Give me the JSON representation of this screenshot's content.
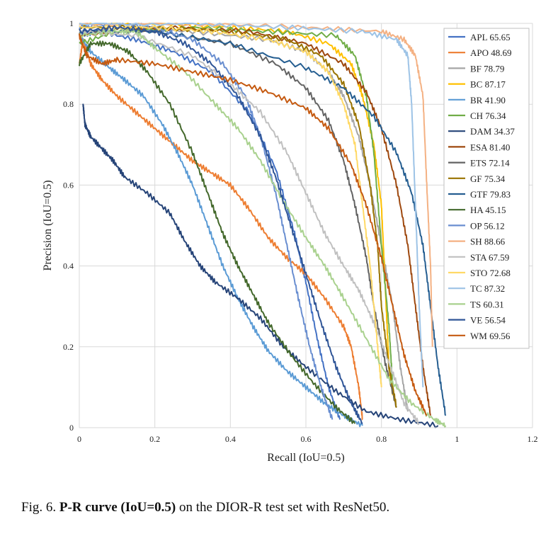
{
  "chart_data": {
    "type": "line",
    "title": "",
    "xlabel": "Recall (IoU=0.5)",
    "ylabel": "Precision (IoU=0.5)",
    "xlim": [
      0,
      1.2
    ],
    "ylim": [
      0,
      1
    ],
    "x_ticks": [
      0,
      0.2,
      0.4,
      0.6,
      0.8,
      1,
      1.2
    ],
    "x_tick_labels": [
      "0",
      "0.2",
      "0.4",
      "0.6",
      "0.8",
      "1",
      "1.2"
    ],
    "y_ticks": [
      0,
      0.2,
      0.4,
      0.6,
      0.8,
      1
    ],
    "y_tick_labels": [
      "0",
      "0.2",
      "0.4",
      "0.6",
      "0.8",
      "1"
    ],
    "grid": true,
    "legend_position": "top-right",
    "series": [
      {
        "name": "APL 65.65",
        "color": "#4472C4",
        "points": [
          [
            0,
            0.97
          ],
          [
            0.05,
            0.98
          ],
          [
            0.15,
            0.96
          ],
          [
            0.25,
            0.93
          ],
          [
            0.35,
            0.88
          ],
          [
            0.45,
            0.78
          ],
          [
            0.52,
            0.64
          ],
          [
            0.57,
            0.48
          ],
          [
            0.6,
            0.36
          ],
          [
            0.63,
            0.22
          ],
          [
            0.66,
            0.1
          ],
          [
            0.69,
            0.02
          ]
        ]
      },
      {
        "name": "APO 48.69",
        "color": "#ED7D31",
        "points": [
          [
            0,
            0.9
          ],
          [
            0.01,
            0.96
          ],
          [
            0.03,
            0.9
          ],
          [
            0.06,
            0.86
          ],
          [
            0.1,
            0.82
          ],
          [
            0.15,
            0.78
          ],
          [
            0.2,
            0.74
          ],
          [
            0.25,
            0.7
          ],
          [
            0.3,
            0.66
          ],
          [
            0.35,
            0.63
          ],
          [
            0.4,
            0.6
          ],
          [
            0.45,
            0.54
          ],
          [
            0.5,
            0.47
          ],
          [
            0.55,
            0.42
          ],
          [
            0.6,
            0.38
          ],
          [
            0.65,
            0.32
          ],
          [
            0.7,
            0.25
          ],
          [
            0.72,
            0.2
          ],
          [
            0.74,
            0.1
          ],
          [
            0.75,
            0.02
          ]
        ]
      },
      {
        "name": "BF 78.79",
        "color": "#A5A5A5",
        "points": [
          [
            0,
            0.97
          ],
          [
            0.1,
            0.99
          ],
          [
            0.3,
            0.98
          ],
          [
            0.5,
            0.96
          ],
          [
            0.6,
            0.93
          ],
          [
            0.66,
            0.88
          ],
          [
            0.7,
            0.82
          ],
          [
            0.74,
            0.72
          ],
          [
            0.77,
            0.6
          ],
          [
            0.8,
            0.45
          ],
          [
            0.83,
            0.3
          ],
          [
            0.85,
            0.15
          ],
          [
            0.87,
            0.04
          ]
        ]
      },
      {
        "name": "BC 87.17",
        "color": "#FFC000",
        "points": [
          [
            0,
            1
          ],
          [
            0.2,
            1
          ],
          [
            0.4,
            0.99
          ],
          [
            0.55,
            0.98
          ],
          [
            0.66,
            0.95
          ],
          [
            0.72,
            0.9
          ],
          [
            0.75,
            0.82
          ],
          [
            0.78,
            0.7
          ],
          [
            0.8,
            0.55
          ],
          [
            0.81,
            0.35
          ],
          [
            0.82,
            0.15
          ],
          [
            0.83,
            0.08
          ]
        ]
      },
      {
        "name": "BR 41.90",
        "color": "#5B9BD5",
        "points": [
          [
            0,
            0.97
          ],
          [
            0.03,
            0.93
          ],
          [
            0.08,
            0.89
          ],
          [
            0.12,
            0.86
          ],
          [
            0.17,
            0.82
          ],
          [
            0.22,
            0.75
          ],
          [
            0.26,
            0.68
          ],
          [
            0.3,
            0.6
          ],
          [
            0.34,
            0.5
          ],
          [
            0.38,
            0.4
          ],
          [
            0.42,
            0.32
          ],
          [
            0.46,
            0.25
          ],
          [
            0.5,
            0.19
          ],
          [
            0.55,
            0.14
          ],
          [
            0.6,
            0.1
          ],
          [
            0.65,
            0.06
          ],
          [
            0.7,
            0.03
          ],
          [
            0.75,
            0.005
          ]
        ]
      },
      {
        "name": "CH 76.34",
        "color": "#70AD47",
        "points": [
          [
            0,
            0.95
          ],
          [
            0.1,
            0.98
          ],
          [
            0.3,
            0.99
          ],
          [
            0.5,
            0.98
          ],
          [
            0.68,
            0.97
          ],
          [
            0.73,
            0.92
          ],
          [
            0.76,
            0.82
          ],
          [
            0.78,
            0.68
          ],
          [
            0.8,
            0.45
          ],
          [
            0.82,
            0.25
          ],
          [
            0.83,
            0.1
          ]
        ]
      },
      {
        "name": "DAM 34.37",
        "color": "#264478",
        "points": [
          [
            0.01,
            0.8
          ],
          [
            0.015,
            0.75
          ],
          [
            0.03,
            0.72
          ],
          [
            0.06,
            0.69
          ],
          [
            0.09,
            0.66
          ],
          [
            0.12,
            0.62
          ],
          [
            0.18,
            0.58
          ],
          [
            0.24,
            0.53
          ],
          [
            0.28,
            0.46
          ],
          [
            0.32,
            0.4
          ],
          [
            0.36,
            0.36
          ],
          [
            0.42,
            0.32
          ],
          [
            0.48,
            0.27
          ],
          [
            0.54,
            0.2
          ],
          [
            0.6,
            0.15
          ],
          [
            0.68,
            0.09
          ],
          [
            0.76,
            0.04
          ],
          [
            0.85,
            0.02
          ],
          [
            0.95,
            0.005
          ]
        ]
      },
      {
        "name": "ESA 81.40",
        "color": "#9E480E",
        "points": [
          [
            0,
            0.97
          ],
          [
            0.2,
            0.99
          ],
          [
            0.45,
            0.98
          ],
          [
            0.6,
            0.95
          ],
          [
            0.7,
            0.9
          ],
          [
            0.76,
            0.83
          ],
          [
            0.8,
            0.74
          ],
          [
            0.84,
            0.6
          ],
          [
            0.87,
            0.45
          ],
          [
            0.89,
            0.3
          ],
          [
            0.91,
            0.15
          ],
          [
            0.93,
            0.03
          ]
        ]
      },
      {
        "name": "ETS 72.14",
        "color": "#636363",
        "points": [
          [
            0,
            0.98
          ],
          [
            0.2,
            0.98
          ],
          [
            0.4,
            0.95
          ],
          [
            0.52,
            0.9
          ],
          [
            0.6,
            0.84
          ],
          [
            0.66,
            0.76
          ],
          [
            0.7,
            0.66
          ],
          [
            0.73,
            0.55
          ],
          [
            0.76,
            0.42
          ],
          [
            0.78,
            0.3
          ],
          [
            0.81,
            0.16
          ],
          [
            0.84,
            0.05
          ]
        ]
      },
      {
        "name": "GF 75.34",
        "color": "#997300",
        "points": [
          [
            0,
            0.99
          ],
          [
            0.2,
            0.99
          ],
          [
            0.4,
            0.98
          ],
          [
            0.55,
            0.96
          ],
          [
            0.64,
            0.92
          ],
          [
            0.7,
            0.85
          ],
          [
            0.74,
            0.75
          ],
          [
            0.77,
            0.6
          ],
          [
            0.79,
            0.45
          ],
          [
            0.8,
            0.3
          ],
          [
            0.82,
            0.15
          ],
          [
            0.84,
            0.05
          ]
        ]
      },
      {
        "name": "GTF 79.83",
        "color": "#255E91",
        "points": [
          [
            0,
            0.98
          ],
          [
            0.2,
            0.98
          ],
          [
            0.4,
            0.95
          ],
          [
            0.6,
            0.89
          ],
          [
            0.7,
            0.84
          ],
          [
            0.78,
            0.77
          ],
          [
            0.84,
            0.68
          ],
          [
            0.88,
            0.58
          ],
          [
            0.91,
            0.45
          ],
          [
            0.93,
            0.3
          ],
          [
            0.95,
            0.15
          ],
          [
            0.97,
            0.03
          ]
        ]
      },
      {
        "name": "HA 45.15",
        "color": "#43682B",
        "points": [
          [
            0,
            0.9
          ],
          [
            0.03,
            0.95
          ],
          [
            0.08,
            0.95
          ],
          [
            0.13,
            0.93
          ],
          [
            0.18,
            0.88
          ],
          [
            0.24,
            0.8
          ],
          [
            0.3,
            0.68
          ],
          [
            0.34,
            0.58
          ],
          [
            0.38,
            0.48
          ],
          [
            0.42,
            0.4
          ],
          [
            0.46,
            0.33
          ],
          [
            0.5,
            0.26
          ],
          [
            0.56,
            0.18
          ],
          [
            0.62,
            0.11
          ],
          [
            0.68,
            0.05
          ],
          [
            0.73,
            0.01
          ]
        ]
      },
      {
        "name": "OP 56.12",
        "color": "#698ED0",
        "points": [
          [
            0,
            0.99
          ],
          [
            0.1,
            1
          ],
          [
            0.2,
            0.99
          ],
          [
            0.3,
            0.96
          ],
          [
            0.38,
            0.9
          ],
          [
            0.44,
            0.82
          ],
          [
            0.48,
            0.72
          ],
          [
            0.52,
            0.58
          ],
          [
            0.55,
            0.45
          ],
          [
            0.58,
            0.32
          ],
          [
            0.61,
            0.2
          ],
          [
            0.64,
            0.1
          ],
          [
            0.67,
            0.02
          ]
        ]
      },
      {
        "name": "SH 88.66",
        "color": "#F4B183",
        "points": [
          [
            0,
            1
          ],
          [
            0.3,
            1
          ],
          [
            0.6,
            0.99
          ],
          [
            0.8,
            0.98
          ],
          [
            0.86,
            0.96
          ],
          [
            0.89,
            0.92
          ],
          [
            0.91,
            0.82
          ],
          [
            0.92,
            0.6
          ],
          [
            0.93,
            0.4
          ],
          [
            0.935,
            0.2
          ]
        ]
      },
      {
        "name": "STA 67.59",
        "color": "#C0C0C0",
        "points": [
          [
            0,
            0.98
          ],
          [
            0.15,
            0.97
          ],
          [
            0.3,
            0.92
          ],
          [
            0.4,
            0.85
          ],
          [
            0.48,
            0.78
          ],
          [
            0.55,
            0.68
          ],
          [
            0.6,
            0.58
          ],
          [
            0.65,
            0.48
          ],
          [
            0.7,
            0.4
          ],
          [
            0.74,
            0.34
          ],
          [
            0.78,
            0.26
          ],
          [
            0.82,
            0.16
          ],
          [
            0.86,
            0.06
          ],
          [
            0.9,
            0.01
          ]
        ]
      },
      {
        "name": "STO 72.68",
        "color": "#FFD966",
        "points": [
          [
            0,
            0.99
          ],
          [
            0.2,
            0.99
          ],
          [
            0.35,
            0.98
          ],
          [
            0.5,
            0.96
          ],
          [
            0.6,
            0.93
          ],
          [
            0.66,
            0.88
          ],
          [
            0.7,
            0.8
          ],
          [
            0.73,
            0.7
          ],
          [
            0.75,
            0.55
          ],
          [
            0.77,
            0.4
          ],
          [
            0.79,
            0.2
          ],
          [
            0.8,
            0.1
          ]
        ]
      },
      {
        "name": "TC 87.32",
        "color": "#9DC3E6",
        "points": [
          [
            0,
            1
          ],
          [
            0.3,
            1
          ],
          [
            0.55,
            0.99
          ],
          [
            0.75,
            0.98
          ],
          [
            0.84,
            0.96
          ],
          [
            0.87,
            0.92
          ],
          [
            0.88,
            0.8
          ],
          [
            0.89,
            0.55
          ],
          [
            0.9,
            0.3
          ],
          [
            0.91,
            0.1
          ]
        ]
      },
      {
        "name": "TS 60.31",
        "color": "#A9D18E",
        "points": [
          [
            0,
            0.97
          ],
          [
            0.1,
            0.98
          ],
          [
            0.15,
            0.98
          ],
          [
            0.2,
            0.94
          ],
          [
            0.28,
            0.88
          ],
          [
            0.36,
            0.8
          ],
          [
            0.42,
            0.74
          ],
          [
            0.48,
            0.66
          ],
          [
            0.54,
            0.56
          ],
          [
            0.6,
            0.47
          ],
          [
            0.65,
            0.4
          ],
          [
            0.7,
            0.32
          ],
          [
            0.76,
            0.22
          ],
          [
            0.82,
            0.12
          ],
          [
            0.88,
            0.06
          ],
          [
            0.94,
            0.02
          ],
          [
            0.97,
            0.005
          ]
        ]
      },
      {
        "name": "VE 56.54",
        "color": "#2F5597",
        "points": [
          [
            0,
            0.98
          ],
          [
            0.1,
            0.99
          ],
          [
            0.2,
            0.98
          ],
          [
            0.28,
            0.95
          ],
          [
            0.35,
            0.9
          ],
          [
            0.42,
            0.82
          ],
          [
            0.48,
            0.72
          ],
          [
            0.52,
            0.62
          ],
          [
            0.56,
            0.5
          ],
          [
            0.6,
            0.38
          ],
          [
            0.64,
            0.26
          ],
          [
            0.68,
            0.15
          ],
          [
            0.72,
            0.06
          ],
          [
            0.75,
            0.01
          ]
        ]
      },
      {
        "name": "WM 69.56",
        "color": "#C55A11",
        "points": [
          [
            0,
            0.97
          ],
          [
            0.02,
            0.92
          ],
          [
            0.06,
            0.9
          ],
          [
            0.1,
            0.91
          ],
          [
            0.2,
            0.9
          ],
          [
            0.3,
            0.88
          ],
          [
            0.4,
            0.86
          ],
          [
            0.5,
            0.83
          ],
          [
            0.6,
            0.79
          ],
          [
            0.66,
            0.74
          ],
          [
            0.72,
            0.65
          ],
          [
            0.76,
            0.55
          ],
          [
            0.8,
            0.42
          ],
          [
            0.83,
            0.3
          ],
          [
            0.86,
            0.18
          ],
          [
            0.89,
            0.09
          ],
          [
            0.92,
            0.03
          ]
        ]
      }
    ]
  },
  "caption": {
    "prefix": "Fig. 6.",
    "bold": "P-R curve (IoU=0.5)",
    "rest": " on the DIOR-R test set with ResNet50."
  }
}
